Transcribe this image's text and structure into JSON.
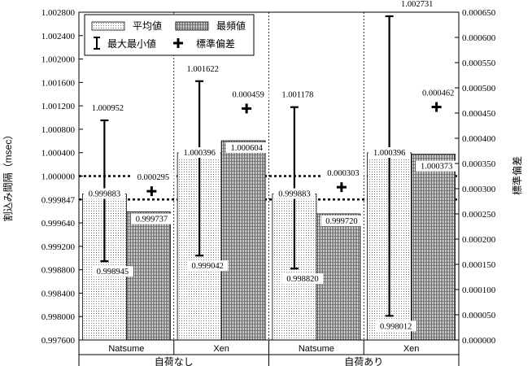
{
  "chart_data": {
    "type": "bar",
    "y_left_label": "割込み間隔（msec）",
    "y_right_label": "標準偏差",
    "y_left_lim": [
      0.9976,
      1.0028
    ],
    "y_right_lim": [
      0.0,
      0.00065
    ],
    "y_left_ticks": [
      "0.997600",
      "0.998000",
      "0.998400",
      "0.998800",
      "0.999200",
      "0.999640",
      "0.999847",
      "1.000000",
      "1.000400",
      "1.000800",
      "1.001200",
      "1.001600",
      "1.002000",
      "1.002400",
      "1.002800"
    ],
    "y_left_tick_values": [
      0.9976,
      0.998,
      0.9984,
      0.9988,
      0.9992,
      0.99964,
      0.999847,
      1.0,
      1.0004,
      1.0008,
      1.0012,
      1.0016,
      1.002,
      1.0024,
      1.0028
    ],
    "y_right_ticks": [
      "0.000000",
      "0.000050",
      "0.000100",
      "0.000150",
      "0.000200",
      "0.000250",
      "0.000300",
      "0.000350",
      "0.000400",
      "0.000450",
      "0.000500",
      "0.000550",
      "0.000600",
      "0.000650"
    ],
    "y_right_tick_values": [
      0,
      5e-05,
      0.0001,
      0.00015,
      0.0002,
      0.00025,
      0.0003,
      0.00035,
      0.0004,
      0.00045,
      0.0005,
      0.00055,
      0.0006,
      0.00065
    ],
    "reference_lines": [
      0.999847,
      1.0
    ],
    "groups": [
      {
        "name": "自荷なし",
        "categories": [
          "Natsume",
          "Xen"
        ]
      },
      {
        "name": "自荷あり",
        "categories": [
          "Natsume",
          "Xen"
        ]
      }
    ],
    "categories": [
      "Natsume",
      "Xen",
      "Natsume",
      "Xen"
    ],
    "series": [
      {
        "name": "平均値",
        "values": [
          0.999883,
          1.000396,
          0.999883,
          1.000396
        ]
      },
      {
        "name": "最頻値",
        "values": [
          0.999737,
          1.000604,
          0.99972,
          1.000373
        ]
      }
    ],
    "minmax": {
      "name": "最大最小値",
      "max": [
        1.000952,
        1.001622,
        1.001178,
        1.002731
      ],
      "min": [
        0.998945,
        0.999042,
        0.99882,
        0.998012
      ]
    },
    "stddev": {
      "name": "標準偏差",
      "values": [
        0.000295,
        0.000459,
        0.000303,
        0.000462
      ]
    },
    "value_labels": {
      "mean": [
        "0.999883",
        "1.000396",
        "0.999883",
        "1.000396"
      ],
      "mode": [
        "0.999737",
        "1.000604",
        "0.999720",
        "1.000373"
      ],
      "max": [
        "1.000952",
        "1.001622",
        "1.001178",
        "1.002731"
      ],
      "min": [
        "0.998945",
        "0.999042",
        "0.998820",
        "0.998012"
      ],
      "stddev": [
        "0.000295",
        "0.000459",
        "0.000303",
        "0.000462"
      ]
    }
  }
}
